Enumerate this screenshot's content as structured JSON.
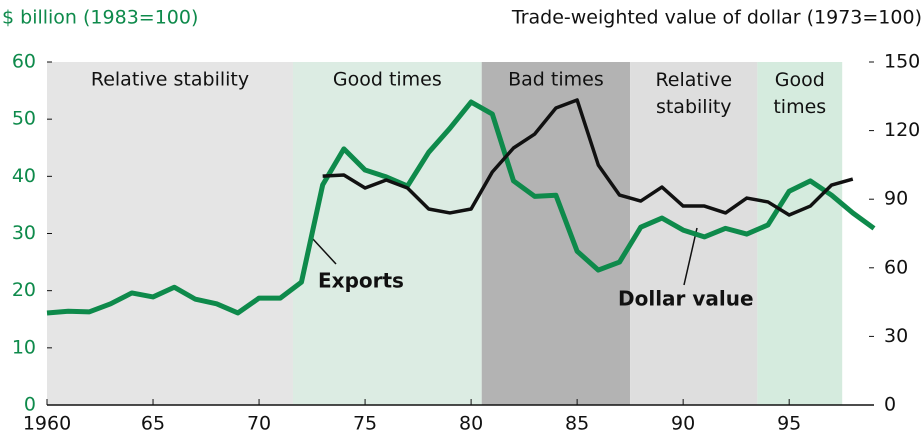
{
  "chart_data": {
    "type": "line",
    "left_axis_label": "$ billion (1983=100)",
    "right_axis_label": "Trade-weighted value of dollar (1973=100)",
    "xlim": [
      1960,
      1999
    ],
    "xticks": [
      1960,
      {
        "value": 1965,
        "label": "65"
      },
      {
        "value": 1970,
        "label": "70"
      },
      {
        "value": 1975,
        "label": "75"
      },
      {
        "value": 1980,
        "label": "80"
      },
      {
        "value": 1985,
        "label": "85"
      },
      {
        "value": 1990,
        "label": "90"
      },
      {
        "value": 1995,
        "label": "95"
      }
    ],
    "ylim": [
      0,
      60
    ],
    "yticks": [
      0,
      10,
      20,
      30,
      40,
      50,
      60
    ],
    "y2lim": [
      0,
      150
    ],
    "y2ticks": [
      0,
      30,
      60,
      90,
      120,
      150
    ],
    "bands": [
      {
        "label": "Relative stability",
        "start": 1960,
        "end": 1971.6,
        "color": "#e5e5e5"
      },
      {
        "label": "Good times",
        "start": 1971.6,
        "end": 1980.5,
        "color": "#dcece3"
      },
      {
        "label": "Bad times",
        "start": 1980.5,
        "end": 1987.5,
        "color": "#b3b3b3"
      },
      {
        "label": "Relative\nstability",
        "start": 1987.5,
        "end": 1993.5,
        "color": "#dedede"
      },
      {
        "label": "Good\ntimes",
        "start": 1993.5,
        "end": 1997.5,
        "color": "#d5ebde"
      }
    ],
    "series": [
      {
        "name": "Exports",
        "color": "#0e8a4b",
        "x": [
          1960,
          1961,
          1962,
          1963,
          1964,
          1965,
          1966,
          1967,
          1968,
          1969,
          1970,
          1971,
          1972,
          1973,
          1974,
          1975,
          1976,
          1977,
          1978,
          1979,
          1980,
          1981,
          1982,
          1983,
          1984,
          1985,
          1986,
          1987,
          1988,
          1989,
          1990,
          1991,
          1992,
          1993,
          1994,
          1995,
          1996,
          1997,
          1998,
          1999
        ],
        "values": [
          16.1,
          16.4,
          16.3,
          17.7,
          19.6,
          18.9,
          20.6,
          18.5,
          17.7,
          16.1,
          18.7,
          18.7,
          21.5,
          38.5,
          44.8,
          41.1,
          39.9,
          38.3,
          44.2,
          48.4,
          53.0,
          50.9,
          39.2,
          36.5,
          36.7,
          26.9,
          23.6,
          25.0,
          31.1,
          32.7,
          30.6,
          29.4,
          30.9,
          29.9,
          31.5,
          37.4,
          39.2,
          36.7,
          33.6,
          30.9
        ]
      },
      {
        "name": "Dollar value",
        "color": "#111111",
        "axis": "y2",
        "x": [
          1973,
          1974,
          1975,
          1976,
          1977,
          1978,
          1979,
          1980,
          1981,
          1982,
          1983,
          1984,
          1985,
          1986,
          1987,
          1988,
          1989,
          1990,
          1991,
          1992,
          1993,
          1994,
          1995,
          1996,
          1997,
          1998
        ],
        "values": [
          100.1,
          100.6,
          94.9,
          98.4,
          94.9,
          85.7,
          84.0,
          85.7,
          101.9,
          112.4,
          118.5,
          129.9,
          133.4,
          104.9,
          91.8,
          89.2,
          95.3,
          87.0,
          87.0,
          84.0,
          90.5,
          88.8,
          83.1,
          87.0,
          96.2,
          98.8
        ]
      }
    ]
  }
}
